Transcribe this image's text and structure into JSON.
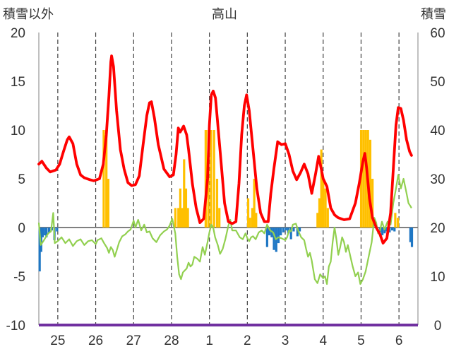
{
  "chart_data": {
    "type": "bar+line",
    "title": "高山",
    "left_axis_label": "積雪以外",
    "right_axis_label": "積雪",
    "left_ylim": [
      -10,
      20
    ],
    "right_ylim": [
      0,
      60
    ],
    "left_ticks": [
      -10,
      -5,
      0,
      5,
      10,
      15,
      20
    ],
    "right_ticks": [
      0,
      10,
      20,
      30,
      40,
      50,
      60
    ],
    "x_range": [
      0,
      10
    ],
    "x_tick_labels": [
      {
        "x": 0.5,
        "label": "25"
      },
      {
        "x": 1.5,
        "label": "26"
      },
      {
        "x": 2.5,
        "label": "27"
      },
      {
        "x": 3.5,
        "label": "28"
      },
      {
        "x": 4.5,
        "label": "1"
      },
      {
        "x": 5.5,
        "label": "2"
      },
      {
        "x": 6.5,
        "label": "3"
      },
      {
        "x": 7.5,
        "label": "4"
      },
      {
        "x": 8.5,
        "label": "5"
      },
      {
        "x": 9.5,
        "label": "6"
      }
    ],
    "grid": "dashed vertical",
    "colors": {
      "red_line": "#ff0000",
      "green_line": "#92d050",
      "orange_bars": "#ffc000",
      "blue_bars": "#1f77c4",
      "purple_line": "#7030a0",
      "grid": "#404040"
    },
    "red_series": [
      [
        0.0,
        6.5
      ],
      [
        0.08,
        6.8
      ],
      [
        0.2,
        6.1
      ],
      [
        0.3,
        5.7
      ],
      [
        0.45,
        5.9
      ],
      [
        0.55,
        6.5
      ],
      [
        0.65,
        7.8
      ],
      [
        0.75,
        9.0
      ],
      [
        0.8,
        9.3
      ],
      [
        0.9,
        8.6
      ],
      [
        1.0,
        6.5
      ],
      [
        1.1,
        5.4
      ],
      [
        1.2,
        5.1
      ],
      [
        1.35,
        4.9
      ],
      [
        1.45,
        4.8
      ],
      [
        1.6,
        5.0
      ],
      [
        1.7,
        6.5
      ],
      [
        1.78,
        9.5
      ],
      [
        1.85,
        13.5
      ],
      [
        1.9,
        17.0
      ],
      [
        1.92,
        17.6
      ],
      [
        1.97,
        16.5
      ],
      [
        2.05,
        12.0
      ],
      [
        2.15,
        8.0
      ],
      [
        2.25,
        6.0
      ],
      [
        2.35,
        4.6
      ],
      [
        2.45,
        4.3
      ],
      [
        2.55,
        4.4
      ],
      [
        2.65,
        5.3
      ],
      [
        2.75,
        8.5
      ],
      [
        2.85,
        11.5
      ],
      [
        2.92,
        12.8
      ],
      [
        2.97,
        12.9
      ],
      [
        3.05,
        11.2
      ],
      [
        3.15,
        8.5
      ],
      [
        3.3,
        6.0
      ],
      [
        3.45,
        5.2
      ],
      [
        3.55,
        5.4
      ],
      [
        3.62,
        7.5
      ],
      [
        3.68,
        10.2
      ],
      [
        3.73,
        9.8
      ],
      [
        3.82,
        10.4
      ],
      [
        3.9,
        9.5
      ],
      [
        3.95,
        8.0
      ],
      [
        4.05,
        4.5
      ],
      [
        4.15,
        2.0
      ],
      [
        4.25,
        0.5
      ],
      [
        4.35,
        0.9
      ],
      [
        4.45,
        5.0
      ],
      [
        4.5,
        10.5
      ],
      [
        4.55,
        13.6
      ],
      [
        4.6,
        14.0
      ],
      [
        4.66,
        13.3
      ],
      [
        4.7,
        11.5
      ],
      [
        4.8,
        7.0
      ],
      [
        4.9,
        2.5
      ],
      [
        5.0,
        0.6
      ],
      [
        5.1,
        0.4
      ],
      [
        5.2,
        0.6
      ],
      [
        5.28,
        4.5
      ],
      [
        5.35,
        9.5
      ],
      [
        5.42,
        12.5
      ],
      [
        5.48,
        13.6
      ],
      [
        5.55,
        12.0
      ],
      [
        5.65,
        8.0
      ],
      [
        5.75,
        4.0
      ],
      [
        5.85,
        1.5
      ],
      [
        5.95,
        0.6
      ],
      [
        6.05,
        0.6
      ],
      [
        6.12,
        3.5
      ],
      [
        6.2,
        6.0
      ],
      [
        6.3,
        8.8
      ],
      [
        6.4,
        8.5
      ],
      [
        6.5,
        8.6
      ],
      [
        6.6,
        7.5
      ],
      [
        6.7,
        5.8
      ],
      [
        6.8,
        4.9
      ],
      [
        6.9,
        5.6
      ],
      [
        7.0,
        6.5
      ],
      [
        7.1,
        5.5
      ],
      [
        7.2,
        3.5
      ],
      [
        7.3,
        5.5
      ],
      [
        7.38,
        7.3
      ],
      [
        7.45,
        6.0
      ],
      [
        7.5,
        5.0
      ],
      [
        7.6,
        4.2
      ],
      [
        7.7,
        2.0
      ],
      [
        7.8,
        1.3
      ],
      [
        7.9,
        1.0
      ],
      [
        8.05,
        0.8
      ],
      [
        8.2,
        0.9
      ],
      [
        8.35,
        2.5
      ],
      [
        8.45,
        4.5
      ],
      [
        8.55,
        6.8
      ],
      [
        8.6,
        7.6
      ],
      [
        8.65,
        6.0
      ],
      [
        8.72,
        3.0
      ],
      [
        8.8,
        1.0
      ],
      [
        8.9,
        0.0
      ],
      [
        9.0,
        -0.7
      ],
      [
        9.08,
        -1.6
      ],
      [
        9.18,
        -1.1
      ],
      [
        9.28,
        1.5
      ],
      [
        9.35,
        6.0
      ],
      [
        9.42,
        10.5
      ],
      [
        9.48,
        12.3
      ],
      [
        9.55,
        12.2
      ],
      [
        9.62,
        11.0
      ],
      [
        9.7,
        9.0
      ],
      [
        9.78,
        7.8
      ],
      [
        9.83,
        7.4
      ]
    ],
    "green_series": [
      [
        0.0,
        0.5
      ],
      [
        0.05,
        -1.8
      ],
      [
        0.12,
        -1.4
      ],
      [
        0.18,
        -1.0
      ],
      [
        0.25,
        -0.6
      ],
      [
        0.32,
        -0.4
      ],
      [
        0.38,
        1.5
      ],
      [
        0.42,
        -1.6
      ],
      [
        0.5,
        -1.4
      ],
      [
        0.6,
        -1.0
      ],
      [
        0.7,
        -1.6
      ],
      [
        0.8,
        -1.2
      ],
      [
        0.9,
        -1.9
      ],
      [
        1.0,
        -1.4
      ],
      [
        1.1,
        -1.2
      ],
      [
        1.2,
        -1.8
      ],
      [
        1.3,
        -1.4
      ],
      [
        1.4,
        -1.3
      ],
      [
        1.5,
        -1.7
      ],
      [
        1.55,
        -1.3
      ],
      [
        1.65,
        -1.1
      ],
      [
        1.72,
        -1.6
      ],
      [
        1.8,
        -2.1
      ],
      [
        1.85,
        -2.6
      ],
      [
        1.9,
        -2.0
      ],
      [
        1.95,
        -2.3
      ],
      [
        2.0,
        -3.0
      ],
      [
        2.05,
        -2.4
      ],
      [
        2.12,
        -1.5
      ],
      [
        2.2,
        -0.9
      ],
      [
        2.28,
        -0.7
      ],
      [
        2.35,
        -0.4
      ],
      [
        2.42,
        -0.2
      ],
      [
        2.5,
        0.7
      ],
      [
        2.55,
        0.0
      ],
      [
        2.62,
        0.8
      ],
      [
        2.7,
        -0.3
      ],
      [
        2.78,
        0.3
      ],
      [
        2.85,
        -0.5
      ],
      [
        2.92,
        -0.4
      ],
      [
        3.0,
        -1.1
      ],
      [
        3.1,
        -1.5
      ],
      [
        3.2,
        -0.8
      ],
      [
        3.3,
        -0.4
      ],
      [
        3.38,
        -0.2
      ],
      [
        3.45,
        0.2
      ],
      [
        3.52,
        0.9
      ],
      [
        3.6,
        -0.6
      ],
      [
        3.65,
        -3.0
      ],
      [
        3.7,
        -4.8
      ],
      [
        3.75,
        -5.3
      ],
      [
        3.8,
        -4.6
      ],
      [
        3.9,
        -4.2
      ],
      [
        3.95,
        -3.6
      ],
      [
        4.0,
        -4.0
      ],
      [
        4.05,
        -3.8
      ],
      [
        4.1,
        -3.0
      ],
      [
        4.18,
        -3.2
      ],
      [
        4.25,
        -3.5
      ],
      [
        4.32,
        -2.0
      ],
      [
        4.38,
        -2.8
      ],
      [
        4.45,
        -1.5
      ],
      [
        4.5,
        -0.5
      ],
      [
        4.55,
        0.3
      ],
      [
        4.6,
        0.0
      ],
      [
        4.65,
        -1.0
      ],
      [
        4.72,
        -1.8
      ],
      [
        4.78,
        -2.7
      ],
      [
        4.85,
        -2.2
      ],
      [
        4.92,
        -1.2
      ],
      [
        5.0,
        0.2
      ],
      [
        5.05,
        0.8
      ],
      [
        5.1,
        -0.3
      ],
      [
        5.2,
        -0.3
      ],
      [
        5.3,
        -1.0
      ],
      [
        5.38,
        -1.2
      ],
      [
        5.45,
        -0.6
      ],
      [
        5.5,
        -1.1
      ],
      [
        5.55,
        -1.4
      ],
      [
        5.6,
        -1.0
      ],
      [
        5.65,
        -0.9
      ],
      [
        5.72,
        -1.2
      ],
      [
        5.8,
        -0.5
      ],
      [
        5.88,
        -0.3
      ],
      [
        5.95,
        -0.6
      ],
      [
        6.02,
        0.3
      ],
      [
        6.1,
        -0.3
      ],
      [
        6.18,
        -0.5
      ],
      [
        6.25,
        -1.2
      ],
      [
        6.32,
        -1.0
      ],
      [
        6.4,
        -1.1
      ],
      [
        6.5,
        -1.3
      ],
      [
        6.55,
        -1.0
      ],
      [
        6.6,
        -0.3
      ],
      [
        6.65,
        -0.4
      ],
      [
        6.7,
        0.3
      ],
      [
        6.78,
        0.4
      ],
      [
        6.85,
        -0.4
      ],
      [
        6.92,
        -1.0
      ],
      [
        7.0,
        -1.3
      ],
      [
        7.05,
        -2.2
      ],
      [
        7.1,
        -3.0
      ],
      [
        7.15,
        -2.6
      ],
      [
        7.2,
        -3.4
      ],
      [
        7.28,
        -5.3
      ],
      [
        7.35,
        -5.7
      ],
      [
        7.42,
        -4.8
      ],
      [
        7.5,
        -5.2
      ],
      [
        7.55,
        -5.0
      ],
      [
        7.6,
        -5.8
      ],
      [
        7.65,
        -4.0
      ],
      [
        7.7,
        -3.5
      ],
      [
        7.75,
        -1.5
      ],
      [
        7.8,
        0.0
      ],
      [
        7.85,
        -1.2
      ],
      [
        7.9,
        -2.8
      ],
      [
        7.95,
        -2.0
      ],
      [
        8.0,
        -1.0
      ],
      [
        8.05,
        -1.5
      ],
      [
        8.1,
        -2.5
      ],
      [
        8.15,
        -1.8
      ],
      [
        8.22,
        -3.0
      ],
      [
        8.28,
        -4.0
      ],
      [
        8.35,
        -5.0
      ],
      [
        8.42,
        -4.6
      ],
      [
        8.48,
        -5.8
      ],
      [
        8.55,
        -5.3
      ],
      [
        8.62,
        -4.5
      ],
      [
        8.7,
        -3.0
      ],
      [
        8.78,
        -1.5
      ],
      [
        8.85,
        1.0
      ],
      [
        8.9,
        0.5
      ],
      [
        8.95,
        -0.6
      ],
      [
        9.0,
        -0.3
      ],
      [
        9.05,
        0.6
      ],
      [
        9.12,
        -0.2
      ],
      [
        9.2,
        0.6
      ],
      [
        9.28,
        0.3
      ],
      [
        9.35,
        2.5
      ],
      [
        9.42,
        4.0
      ],
      [
        9.48,
        5.4
      ],
      [
        9.55,
        4.0
      ],
      [
        9.62,
        5.0
      ],
      [
        9.7,
        3.5
      ],
      [
        9.75,
        2.5
      ],
      [
        9.8,
        2.2
      ],
      [
        9.83,
        2.0
      ]
    ],
    "orange_bars": [
      [
        1.71,
        10.0
      ],
      [
        1.78,
        10.0
      ],
      [
        1.83,
        5.0
      ],
      [
        3.6,
        2.0
      ],
      [
        3.68,
        2.0
      ],
      [
        3.73,
        4.0
      ],
      [
        3.78,
        2.0
      ],
      [
        3.83,
        7.0
      ],
      [
        3.88,
        4.0
      ],
      [
        3.93,
        2.0
      ],
      [
        4.4,
        10.0
      ],
      [
        4.47,
        10.0
      ],
      [
        4.54,
        10.0
      ],
      [
        4.62,
        10.0
      ],
      [
        4.7,
        5.0
      ],
      [
        4.76,
        2.0
      ],
      [
        5.52,
        3.0
      ],
      [
        5.57,
        1.0
      ],
      [
        5.63,
        2.0
      ],
      [
        5.68,
        5.0
      ],
      [
        5.73,
        1.5
      ],
      [
        7.35,
        1.5
      ],
      [
        7.4,
        3.0
      ],
      [
        7.45,
        8.0
      ],
      [
        7.5,
        5.0
      ],
      [
        7.56,
        4.0
      ],
      [
        7.62,
        2.0
      ],
      [
        8.5,
        10.0
      ],
      [
        8.56,
        10.0
      ],
      [
        8.62,
        10.0
      ],
      [
        8.68,
        10.0
      ],
      [
        8.74,
        9.0
      ],
      [
        8.8,
        5.0
      ],
      [
        9.4,
        1.5
      ],
      [
        9.47,
        1.0
      ]
    ],
    "blue_bars": [
      [
        0.02,
        -4.5
      ],
      [
        0.06,
        -2.5
      ],
      [
        0.1,
        -1.0
      ],
      [
        0.16,
        -0.8
      ],
      [
        0.2,
        -1.0
      ],
      [
        0.27,
        -0.5
      ],
      [
        0.34,
        -0.3
      ],
      [
        0.41,
        -1.3
      ],
      [
        0.48,
        -0.4
      ],
      [
        6.02,
        -2.0
      ],
      [
        6.08,
        -0.8
      ],
      [
        6.14,
        -1.0
      ],
      [
        6.2,
        -2.3
      ],
      [
        6.26,
        -2.5
      ],
      [
        6.32,
        -1.6
      ],
      [
        6.38,
        -0.8
      ],
      [
        6.45,
        -0.5
      ],
      [
        6.52,
        -0.3
      ],
      [
        6.58,
        -0.6
      ],
      [
        6.65,
        -1.2
      ],
      [
        6.72,
        -0.4
      ],
      [
        6.82,
        -0.9
      ],
      [
        6.88,
        -0.4
      ],
      [
        9.0,
        -0.5
      ],
      [
        9.06,
        -0.8
      ],
      [
        9.12,
        -0.6
      ],
      [
        9.18,
        -0.4
      ],
      [
        9.25,
        -0.5
      ],
      [
        9.32,
        -0.3
      ],
      [
        9.38,
        -0.4
      ],
      [
        9.8,
        -1.5
      ],
      [
        9.84,
        -2.0
      ]
    ],
    "purple_line_value": -10
  }
}
